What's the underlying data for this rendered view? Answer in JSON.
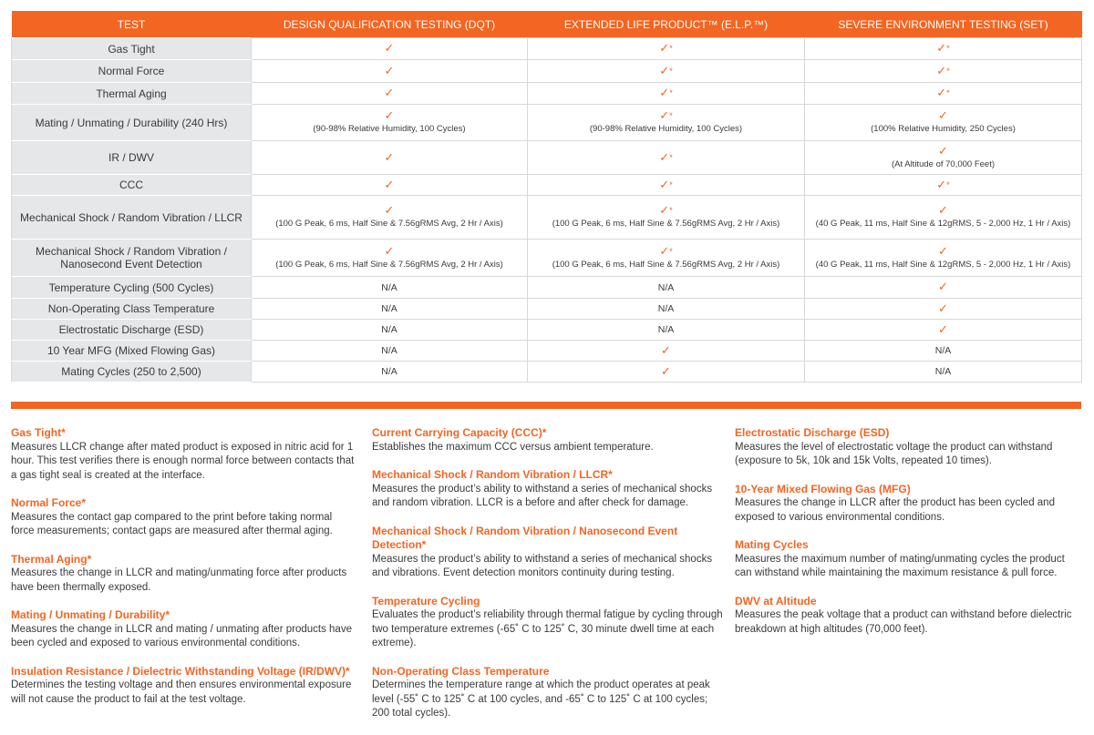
{
  "headers": [
    "TEST",
    "DESIGN QUALIFICATION TESTING (DQT)",
    "EXTENDED LIFE PRODUCT™ (E.L.P.™)",
    "SEVERE ENVIRONMENT TESTING (SET)"
  ],
  "rows": [
    {
      "name": "Gas Tight",
      "h": 24,
      "cells": [
        {
          "mark": "✓"
        },
        {
          "mark": "✓",
          "star": "*"
        },
        {
          "mark": "✓",
          "star": "*"
        }
      ]
    },
    {
      "name": "Normal Force",
      "h": 25,
      "cells": [
        {
          "mark": "✓"
        },
        {
          "mark": "✓",
          "star": "*"
        },
        {
          "mark": "✓",
          "star": "*"
        }
      ]
    },
    {
      "name": "Thermal Aging",
      "h": 24,
      "cells": [
        {
          "mark": "✓"
        },
        {
          "mark": "✓",
          "star": "*"
        },
        {
          "mark": "✓",
          "star": "*"
        }
      ]
    },
    {
      "name": "Mating / Unmating / Durability (240 Hrs)",
      "h": 40,
      "cells": [
        {
          "mark": "✓",
          "note": "(90-98% Relative Humidity, 100 Cycles)"
        },
        {
          "mark": "✓",
          "star": "*",
          "note": "(90-98% Relative Humidity, 100 Cycles)"
        },
        {
          "mark": "✓",
          "note": "(100% Relative Humidity, 250 Cycles)"
        }
      ]
    },
    {
      "name": "IR / DWV",
      "h": 37,
      "cells": [
        {
          "mark": "✓"
        },
        {
          "mark": "✓",
          "star": "*"
        },
        {
          "mark": "✓",
          "note": "(At Altitude of 70,000 Feet)"
        }
      ]
    },
    {
      "name": "CCC",
      "h": 23,
      "cells": [
        {
          "mark": "✓"
        },
        {
          "mark": "✓",
          "star": "*"
        },
        {
          "mark": "✓",
          "star": "*"
        }
      ]
    },
    {
      "name": "Mechanical Shock / Random Vibration / LLCR",
      "h": 48,
      "cells": [
        {
          "mark": "✓",
          "note": "(100 G Peak, 6 ms, Half Sine & 7.56gRMS Avg, 2 Hr / Axis)"
        },
        {
          "mark": "✓",
          "star": "*",
          "note": "(100 G Peak, 6 ms, Half Sine & 7.56gRMS Avg, 2 Hr / Axis)"
        },
        {
          "mark": "✓",
          "note": "(40 G Peak, 11 ms, Half Sine & 12gRMS, 5 - 2,000 Hz, 1 Hr / Axis)"
        }
      ]
    },
    {
      "name": "Mechanical Shock / Random Vibration / Nanosecond Event Detection",
      "h": 41,
      "cells": [
        {
          "mark": "✓",
          "note": "(100 G Peak, 6 ms, Half Sine & 7.56gRMS Avg, 2 Hr / Axis)"
        },
        {
          "mark": "✓",
          "star": "*",
          "note": "(100 G Peak, 6 ms, Half Sine & 7.56gRMS Avg, 2 Hr / Axis)"
        },
        {
          "mark": "✓",
          "note": "(40 G Peak, 11 ms, Half Sine & 12gRMS, 5 - 2,000 Hz, 1 Hr / Axis)"
        }
      ]
    },
    {
      "name": "Temperature Cycling (500 Cycles)",
      "h": 24,
      "cells": [
        {
          "text": "N/A"
        },
        {
          "text": "N/A"
        },
        {
          "mark": "✓"
        }
      ]
    },
    {
      "name": "Non-Operating Class Temperature",
      "h": 23,
      "cells": [
        {
          "text": "N/A"
        },
        {
          "text": "N/A"
        },
        {
          "mark": "✓"
        }
      ]
    },
    {
      "name": "Electrostatic Discharge (ESD)",
      "h": 23,
      "cells": [
        {
          "text": "N/A"
        },
        {
          "text": "N/A"
        },
        {
          "mark": "✓"
        }
      ]
    },
    {
      "name": "10 Year MFG (Mixed Flowing Gas)",
      "h": 23,
      "cells": [
        {
          "text": "N/A"
        },
        {
          "mark": "✓"
        },
        {
          "text": "N/A"
        }
      ]
    },
    {
      "name": "Mating Cycles (250 to 2,500)",
      "h": 23,
      "cells": [
        {
          "text": "N/A"
        },
        {
          "mark": "✓"
        },
        {
          "text": "N/A"
        }
      ]
    }
  ],
  "definitions": [
    [
      {
        "title": "Gas Tight*",
        "body": "Measures LLCR change after mated product is exposed in nitric acid for 1 hour. This test verifies there is enough normal force between contacts that a gas tight seal is created at the interface."
      },
      {
        "title": "Normal Force*",
        "body": "Measures the contact gap compared to the print before taking normal force measurements; contact gaps are measured after thermal aging."
      },
      {
        "title": "Thermal Aging*",
        "body": "Measures the change in LLCR and mating/unmating force after products have been thermally exposed."
      },
      {
        "title": "Mating / Unmating / Durability*",
        "body": "Measures the change in LLCR and mating / unmating after products have been cycled and exposed to various environmental conditions."
      },
      {
        "title": "Insulation Resistance / Dielectric Withstanding Voltage (IR/DWV)*",
        "body": "Determines the testing voltage and then ensures environmental exposure will not cause the product to fail at the test voltage."
      }
    ],
    [
      {
        "title": "Current Carrying Capacity (CCC)*",
        "body": "Establishes the maximum CCC versus ambient temperature."
      },
      {
        "title": "Mechanical Shock / Random Vibration / LLCR*",
        "body": "Measures the product’s ability to withstand a series of mechanical shocks and random vibration. LLCR is a before and after check for damage."
      },
      {
        "title": "Mechanical Shock / Random Vibration / Nanosecond Event Detection*",
        "body": "Measures the product’s ability to withstand a series of mechanical shocks and vibrations. Event detection monitors continuity during testing."
      },
      {
        "title": "Temperature Cycling",
        "body": "Evaluates the product’s reliability through thermal fatigue by cycling through two temperature extremes (-65˚ C to 125˚ C, 30 minute dwell time at each extreme)."
      },
      {
        "title": "Non-Operating Class Temperature",
        "body": "Determines the temperature range at which the product operates at peak level (-55˚ C to 125˚ C at 100 cycles, and -65˚ C to 125˚ C at 100 cycles; 200 total cycles)."
      }
    ],
    [
      {
        "title": "Electrostatic Discharge (ESD)",
        "body": "Measures the level of electrostatic voltage the product can withstand (exposure to 5k, 10k and 15k Volts, repeated 10 times)."
      },
      {
        "title": "10-Year Mixed Flowing Gas (MFG)",
        "body": "Measures the change in LLCR after the product has been cycled and exposed to various environmental conditions."
      },
      {
        "title": "Mating Cycles",
        "body": "Measures the maximum number of mating/unmating cycles the product can withstand while maintaining the maximum resistance & pull force."
      },
      {
        "title": "DWV at Altitude",
        "body": "Measures the peak voltage that a product can withstand before dielectric breakdown at high altitudes (70,000 feet)."
      }
    ]
  ],
  "colors": {
    "accent": "#f26522",
    "label_bg": "#e6e7e8"
  }
}
